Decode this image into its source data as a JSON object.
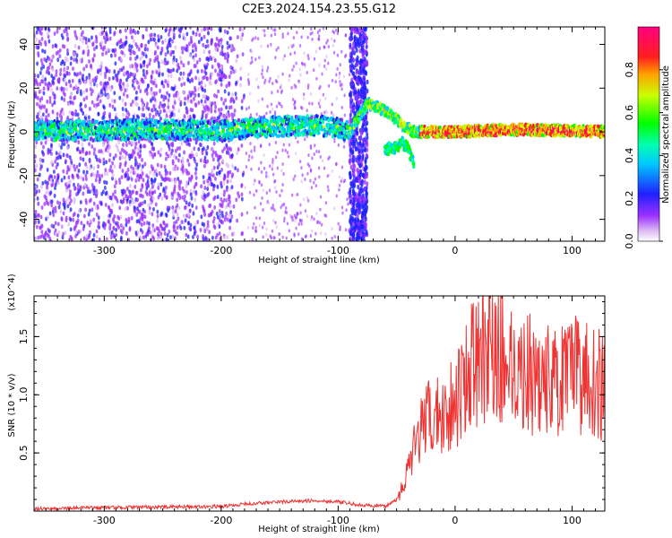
{
  "title": "C2E3.2024.154.23.55.G12",
  "chart_data": [
    {
      "type": "heatmap",
      "xlabel": "Height of straight line (km)",
      "ylabel": "Frequency (Hz)",
      "xlim": [
        -360,
        128
      ],
      "ylim": [
        -50,
        48
      ],
      "xticks": [
        -300,
        -200,
        -100,
        0,
        100
      ],
      "yticks": [
        -40,
        -20,
        0,
        20,
        40
      ],
      "colorbar": {
        "label": "Normalized spectral amplitude",
        "range": [
          0,
          1
        ],
        "ticks": [
          "0.0",
          "0.2",
          "0.4",
          "0.6",
          "0.8"
        ],
        "colormap": "rainbow (white-violet-blue-cyan-green-yellow-red-magenta)"
      },
      "main_trace": [
        [
          -360,
          0.5
        ],
        [
          -300,
          0.8
        ],
        [
          -250,
          1.0
        ],
        [
          -200,
          0.5
        ],
        [
          -170,
          2.0
        ],
        [
          -150,
          2.5
        ],
        [
          -120,
          3.0
        ],
        [
          -100,
          2.0
        ],
        [
          -90,
          0.0
        ],
        [
          -75,
          13.0
        ],
        [
          -65,
          11.0
        ],
        [
          -55,
          8.0
        ],
        [
          -45,
          3.0
        ],
        [
          -35,
          0.0
        ],
        [
          -20,
          0.0
        ],
        [
          0,
          0.0
        ],
        [
          50,
          1.0
        ],
        [
          100,
          0.5
        ],
        [
          128,
          0.0
        ]
      ],
      "secondary_trace": [
        [
          -60,
          -8.0
        ],
        [
          -50,
          -7.0
        ],
        [
          -45,
          -5.0
        ],
        [
          -40,
          -8.0
        ],
        [
          -35,
          -15.0
        ]
      ],
      "noise_band": [
        -90,
        -75
      ]
    },
    {
      "type": "line",
      "xlabel": "Height of straight line (km)",
      "ylabel": "SNR (10 * v/v)",
      "y_multiplier": "(x10^4)",
      "xlim": [
        -360,
        128
      ],
      "ylim": [
        0,
        1.85
      ],
      "xticks": [
        -300,
        -200,
        -100,
        0,
        100
      ],
      "yticks": [
        "0.5",
        "1.0",
        "1.5"
      ],
      "color": "#ee3333",
      "series": [
        {
          "x": [
            -360,
            -300,
            -200,
            -180,
            -150,
            -120,
            -100,
            -80,
            -60,
            -50,
            -40,
            -30,
            -20,
            -10,
            0,
            10,
            30,
            50,
            70,
            90,
            110,
            128
          ],
          "y": [
            0.02,
            0.03,
            0.04,
            0.06,
            0.08,
            0.09,
            0.08,
            0.05,
            0.04,
            0.1,
            0.35,
            0.7,
            0.8,
            0.85,
            0.95,
            1.2,
            1.4,
            1.25,
            1.15,
            1.1,
            1.2,
            1.05
          ]
        }
      ]
    }
  ]
}
